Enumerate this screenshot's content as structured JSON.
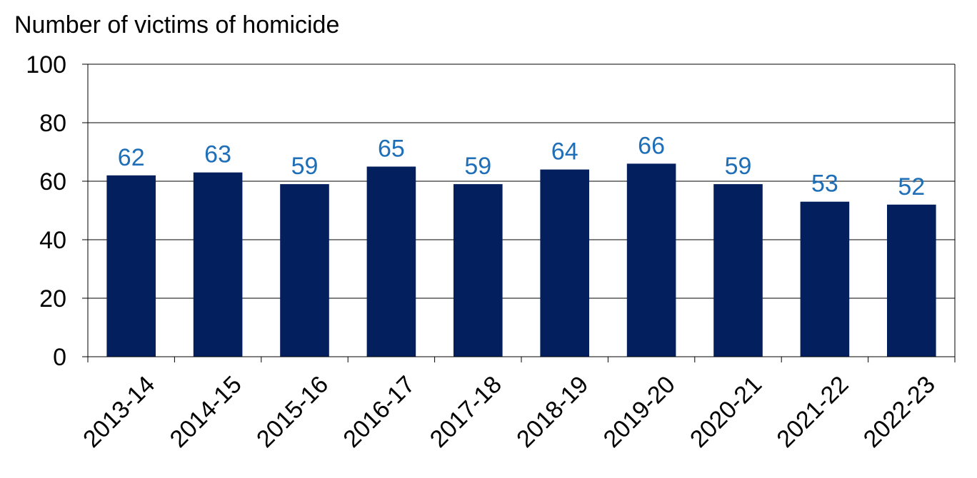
{
  "chart_data": {
    "type": "bar",
    "ylabel": "Number of victims of homicide",
    "xlabel": "",
    "categories": [
      "2013-14",
      "2014-15",
      "2015-16",
      "2016-17",
      "2017-18",
      "2018-19",
      "2019-20",
      "2020-21",
      "2021-22",
      "2022-23"
    ],
    "values": [
      62,
      63,
      59,
      65,
      59,
      64,
      66,
      59,
      53,
      52
    ],
    "ylim": [
      0,
      100
    ],
    "yticks": [
      0,
      20,
      40,
      60,
      80,
      100
    ],
    "grid": true,
    "legend": "none",
    "colors": {
      "bar": "#041F5E",
      "data_label": "#1F6FB8",
      "grid": "#000000",
      "text": "#000000"
    }
  }
}
